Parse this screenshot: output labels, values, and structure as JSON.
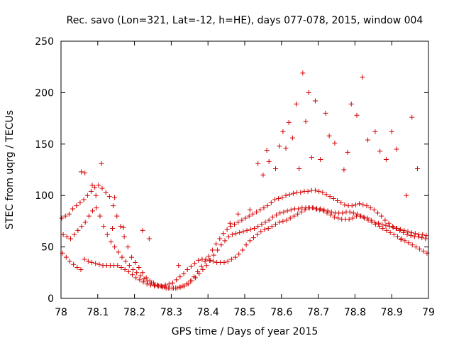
{
  "chart_data": {
    "type": "scatter",
    "title": "Rec. savo (Lon=321, Lat=-12, h=HE), days 077-078, 2015, window 004",
    "xlabel": "GPS time / Days of year 2015",
    "ylabel": "STEC from uqrg / TECUs",
    "xlim": [
      78,
      79
    ],
    "ylim": [
      0,
      250
    ],
    "x_ticks": [
      78,
      78.1,
      78.2,
      78.3,
      78.4,
      78.5,
      78.6,
      78.7,
      78.8,
      78.9,
      79
    ],
    "x_tick_labels": [
      "78",
      "78.1",
      "78.2",
      "78.3",
      "78.4",
      "78.5",
      "78.6",
      "78.7",
      "78.8",
      "78.9",
      "79"
    ],
    "y_ticks": [
      0,
      50,
      100,
      150,
      200,
      250
    ],
    "y_tick_labels": [
      "0",
      "50",
      "100",
      "150",
      "200",
      "250"
    ],
    "grid": false,
    "legend": "none",
    "marker": "+",
    "color": "#d40000",
    "series": [
      {
        "x": [
          78.002,
          78.012,
          78.022,
          78.032,
          78.042,
          78.052,
          78.062,
          78.072,
          78.082,
          78.092,
          78.102,
          78.112,
          78.122,
          78.132,
          78.142,
          78.152,
          78.162,
          78.172,
          78.182,
          78.192,
          78.202,
          78.212,
          78.222,
          78.232,
          78.242,
          78.252,
          78.262,
          78.272,
          78.282,
          78.292,
          78.302,
          78.312,
          78.322,
          78.332,
          78.342,
          78.352,
          78.362,
          78.372,
          78.382,
          78.392,
          78.402,
          78.412,
          78.422,
          78.432,
          78.442,
          78.452,
          78.462,
          78.472,
          78.482,
          78.492,
          78.502,
          78.512,
          78.522,
          78.532,
          78.542,
          78.552,
          78.562,
          78.572,
          78.582,
          78.592,
          78.602,
          78.612,
          78.622,
          78.632,
          78.642,
          78.652,
          78.662,
          78.672,
          78.682,
          78.692,
          78.702,
          78.712,
          78.722,
          78.732,
          78.742,
          78.752,
          78.762,
          78.772,
          78.782,
          78.792,
          78.802,
          78.812,
          78.822,
          78.832,
          78.842,
          78.852,
          78.862,
          78.872,
          78.882,
          78.892,
          78.902,
          78.912,
          78.922,
          78.932,
          78.942,
          78.952,
          78.962,
          78.972,
          78.982,
          78.992
        ],
        "y": [
          78,
          80,
          82,
          87,
          90,
          93,
          96,
          100,
          104,
          108,
          110,
          107,
          103,
          99,
          90,
          80,
          70,
          60,
          50,
          40,
          35,
          30,
          25,
          20,
          17,
          15,
          13,
          12,
          11,
          10,
          10,
          10,
          11,
          12,
          14,
          17,
          21,
          26,
          31,
          36,
          41,
          47,
          53,
          58,
          63,
          67,
          70,
          72,
          74,
          76,
          78,
          80,
          82,
          84,
          86,
          88,
          90,
          93,
          96,
          97,
          98,
          100,
          101,
          102,
          103,
          103,
          104,
          104,
          105,
          105,
          104,
          103,
          101,
          99,
          97,
          95,
          93,
          91,
          90,
          90,
          91,
          92,
          91,
          90,
          88,
          86,
          83,
          80,
          76,
          73,
          70,
          68,
          66,
          64,
          62,
          61,
          60,
          60,
          59,
          58
        ]
      },
      {
        "x": [
          78.006,
          78.016,
          78.026,
          78.036,
          78.046,
          78.056,
          78.066,
          78.076,
          78.086,
          78.096,
          78.106,
          78.116,
          78.126,
          78.136,
          78.146,
          78.156,
          78.166,
          78.176,
          78.186,
          78.196,
          78.206,
          78.216,
          78.226,
          78.236,
          78.246,
          78.256,
          78.266,
          78.276,
          78.286,
          78.296,
          78.306,
          78.316,
          78.326,
          78.336,
          78.346,
          78.356,
          78.366,
          78.376,
          78.386,
          78.396,
          78.406,
          78.416,
          78.426,
          78.436,
          78.446,
          78.456,
          78.466,
          78.476,
          78.486,
          78.496,
          78.506,
          78.516,
          78.526,
          78.536,
          78.546,
          78.556,
          78.566,
          78.576,
          78.586,
          78.596,
          78.606,
          78.616,
          78.626,
          78.636,
          78.646,
          78.656,
          78.666,
          78.676,
          78.686,
          78.696,
          78.706,
          78.716,
          78.726,
          78.736,
          78.746,
          78.756,
          78.766,
          78.776,
          78.786,
          78.796,
          78.806,
          78.816,
          78.826,
          78.836,
          78.846,
          78.856,
          78.866,
          78.876,
          78.886,
          78.896,
          78.906,
          78.916,
          78.926,
          78.936,
          78.946,
          78.956,
          78.966,
          78.976,
          78.986,
          78.996
        ],
        "y": [
          62,
          60,
          58,
          62,
          66,
          70,
          74,
          80,
          85,
          88,
          80,
          70,
          62,
          55,
          50,
          45,
          40,
          36,
          32,
          28,
          25,
          22,
          19,
          17,
          15,
          13,
          12,
          11,
          10,
          10,
          10,
          10,
          11,
          12,
          14,
          17,
          20,
          24,
          28,
          32,
          37,
          42,
          47,
          52,
          56,
          60,
          62,
          63,
          64,
          65,
          66,
          67,
          68,
          70,
          72,
          74,
          76,
          79,
          81,
          83,
          84,
          85,
          86,
          87,
          87,
          88,
          88,
          88,
          88,
          87,
          87,
          86,
          85,
          84,
          83,
          83,
          83,
          84,
          84,
          83,
          82,
          80,
          78,
          76,
          74,
          72,
          70,
          68,
          66,
          64,
          62,
          60,
          58,
          56,
          54,
          52,
          50,
          48,
          46,
          44
        ]
      },
      {
        "x": [
          78.004,
          78.014,
          78.024,
          78.034,
          78.044,
          78.054,
          78.064,
          78.074,
          78.084,
          78.094,
          78.104,
          78.114,
          78.124,
          78.134,
          78.144,
          78.154,
          78.164,
          78.174,
          78.184,
          78.194,
          78.204,
          78.214,
          78.224,
          78.234,
          78.244,
          78.254,
          78.264,
          78.274,
          78.284,
          78.294,
          78.304,
          78.314,
          78.324,
          78.334,
          78.344,
          78.354,
          78.364,
          78.374,
          78.384,
          78.394,
          78.404,
          78.414,
          78.424,
          78.434,
          78.444,
          78.454,
          78.464,
          78.474,
          78.484,
          78.494,
          78.504,
          78.514,
          78.524,
          78.534,
          78.544,
          78.554,
          78.564,
          78.574,
          78.584,
          78.594,
          78.604,
          78.614,
          78.624,
          78.634,
          78.644,
          78.654,
          78.664,
          78.674,
          78.684,
          78.694,
          78.704,
          78.714,
          78.724,
          78.734,
          78.744,
          78.754,
          78.764,
          78.774,
          78.784,
          78.794,
          78.804,
          78.814,
          78.824,
          78.834,
          78.844,
          78.854,
          78.864,
          78.874,
          78.884,
          78.894,
          78.904,
          78.914,
          78.924,
          78.934,
          78.944,
          78.954,
          78.964,
          78.974,
          78.984,
          78.994
        ],
        "y": [
          44,
          40,
          36,
          33,
          30,
          28,
          38,
          36,
          35,
          34,
          33,
          32,
          32,
          32,
          32,
          32,
          30,
          28,
          26,
          23,
          20,
          18,
          16,
          14,
          13,
          12,
          12,
          12,
          13,
          14,
          15,
          18,
          21,
          24,
          28,
          31,
          34,
          37,
          38,
          38,
          37,
          36,
          35,
          35,
          35,
          36,
          38,
          40,
          43,
          47,
          52,
          56,
          59,
          62,
          65,
          67,
          68,
          70,
          72,
          74,
          75,
          76,
          78,
          80,
          82,
          84,
          86,
          88,
          88,
          87,
          86,
          85,
          83,
          81,
          79,
          78,
          77,
          77,
          77,
          78,
          80,
          80,
          79,
          78,
          76,
          74,
          73,
          72,
          71,
          70,
          69,
          68,
          67,
          66,
          65,
          64,
          63,
          62,
          62,
          61
        ]
      },
      {
        "x": [
          78.055,
          78.065,
          78.085,
          78.095,
          78.11,
          78.14,
          78.146,
          78.17,
          78.222,
          78.24,
          78.32,
          78.46,
          78.482,
          78.514,
          78.536,
          78.55,
          78.56,
          78.566,
          78.584,
          78.594,
          78.604,
          78.612,
          78.62,
          78.63,
          78.64,
          78.648,
          78.658,
          78.666,
          78.674,
          78.682,
          78.692,
          78.706,
          78.72,
          78.73,
          78.745,
          78.77,
          78.78,
          78.79,
          78.805,
          78.82,
          78.835,
          78.855,
          78.868,
          78.885,
          78.9,
          78.913,
          78.925,
          78.94,
          78.955,
          78.97
        ],
        "y": [
          123,
          122,
          110,
          100,
          131,
          68,
          98,
          69,
          66,
          58,
          32,
          73,
          82,
          86,
          131,
          120,
          144,
          133,
          126,
          148,
          162,
          146,
          171,
          156,
          189,
          126,
          219,
          172,
          200,
          137,
          192,
          135,
          180,
          158,
          151,
          125,
          142,
          189,
          178,
          215,
          154,
          162,
          143,
          135,
          162,
          145,
          57,
          100,
          176,
          126
        ]
      }
    ]
  }
}
